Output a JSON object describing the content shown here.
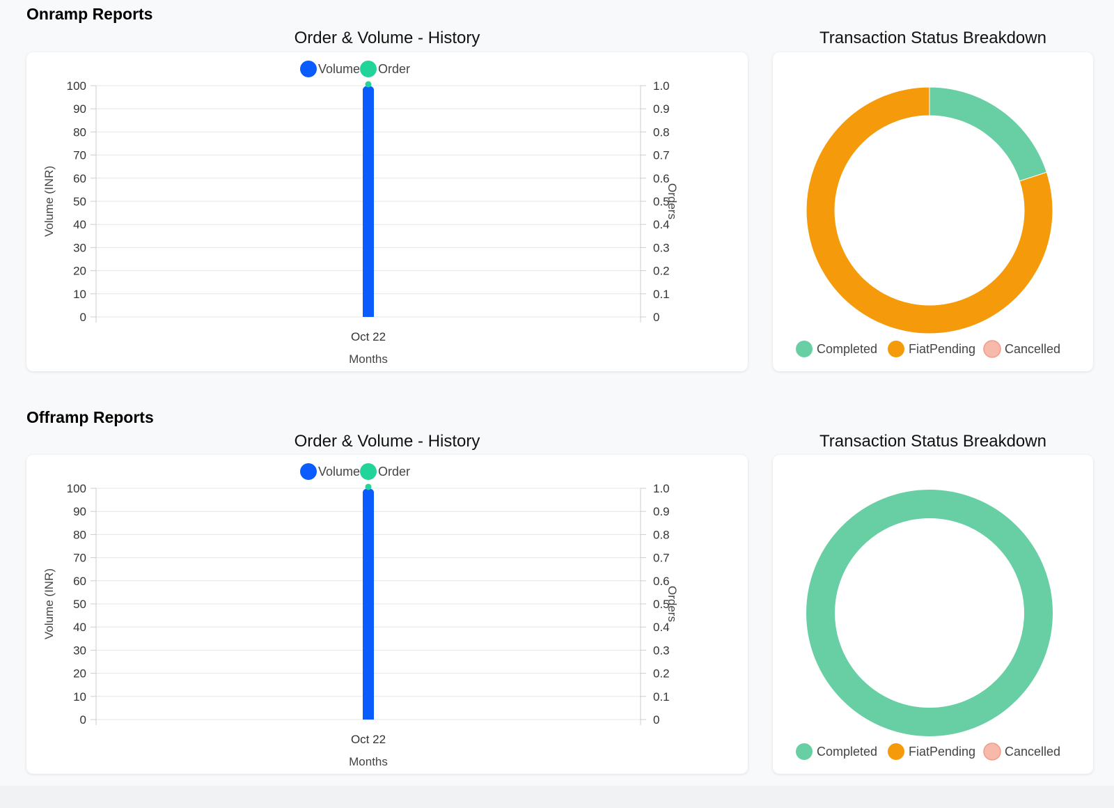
{
  "onramp": {
    "section_title": "Onramp Reports",
    "bar_chart_title": "Order & Volume - History",
    "donut_chart_title": "Transaction Status Breakdown"
  },
  "offramp": {
    "section_title": "Offramp Reports",
    "bar_chart_title": "Order & Volume - History",
    "donut_chart_title": "Transaction Status Breakdown"
  },
  "colors": {
    "volume": "#0a5cff",
    "order": "#22d39a",
    "completed": "#67cfa3",
    "fiat_pending": "#f59b0b",
    "cancelled": "#f6b9aa",
    "grid": "#e6e6e6",
    "axis_text": "#333333"
  },
  "chart_data": [
    {
      "id": "onramp-history",
      "type": "bar",
      "title": "Order & Volume - History",
      "categories": [
        "Oct 22"
      ],
      "series": [
        {
          "name": "Volume",
          "axis": "left",
          "type": "bar",
          "values": [
            100
          ]
        },
        {
          "name": "Order",
          "axis": "right",
          "type": "point",
          "values": [
            1.0
          ]
        }
      ],
      "xlabel": "Months",
      "ylabel": "Volume (INR)",
      "y2label": "Orders",
      "ylim": [
        0,
        100
      ],
      "y2lim": [
        0,
        1.0
      ],
      "yticks": [
        "0",
        "10",
        "20",
        "30",
        "40",
        "50",
        "60",
        "70",
        "80",
        "90",
        "100"
      ],
      "y2ticks": [
        "0",
        "0.1",
        "0.2",
        "0.3",
        "0.4",
        "0.5",
        "0.6",
        "0.7",
        "0.8",
        "0.9",
        "1.0"
      ],
      "grid": true,
      "legend_position": "top"
    },
    {
      "id": "onramp-status",
      "type": "pie",
      "style": "donut",
      "title": "Transaction Status Breakdown",
      "labels": [
        "Completed",
        "FiatPending",
        "Cancelled"
      ],
      "values": [
        20,
        80,
        0
      ],
      "legend_position": "bottom"
    },
    {
      "id": "offramp-history",
      "type": "bar",
      "title": "Order & Volume - History",
      "categories": [
        "Oct 22"
      ],
      "series": [
        {
          "name": "Volume",
          "axis": "left",
          "type": "bar",
          "values": [
            100
          ]
        },
        {
          "name": "Order",
          "axis": "right",
          "type": "point",
          "values": [
            1.0
          ]
        }
      ],
      "xlabel": "Months",
      "ylabel": "Volume (INR)",
      "y2label": "Orders",
      "ylim": [
        0,
        100
      ],
      "y2lim": [
        0,
        1.0
      ],
      "yticks": [
        "0",
        "10",
        "20",
        "30",
        "40",
        "50",
        "60",
        "70",
        "80",
        "90",
        "100"
      ],
      "y2ticks": [
        "0",
        "0.1",
        "0.2",
        "0.3",
        "0.4",
        "0.5",
        "0.6",
        "0.7",
        "0.8",
        "0.9",
        "1.0"
      ],
      "grid": true,
      "legend_position": "top"
    },
    {
      "id": "offramp-status",
      "type": "pie",
      "style": "donut",
      "title": "Transaction Status Breakdown",
      "labels": [
        "Completed",
        "FiatPending",
        "Cancelled"
      ],
      "values": [
        100,
        0,
        0
      ],
      "legend_position": "bottom"
    }
  ]
}
